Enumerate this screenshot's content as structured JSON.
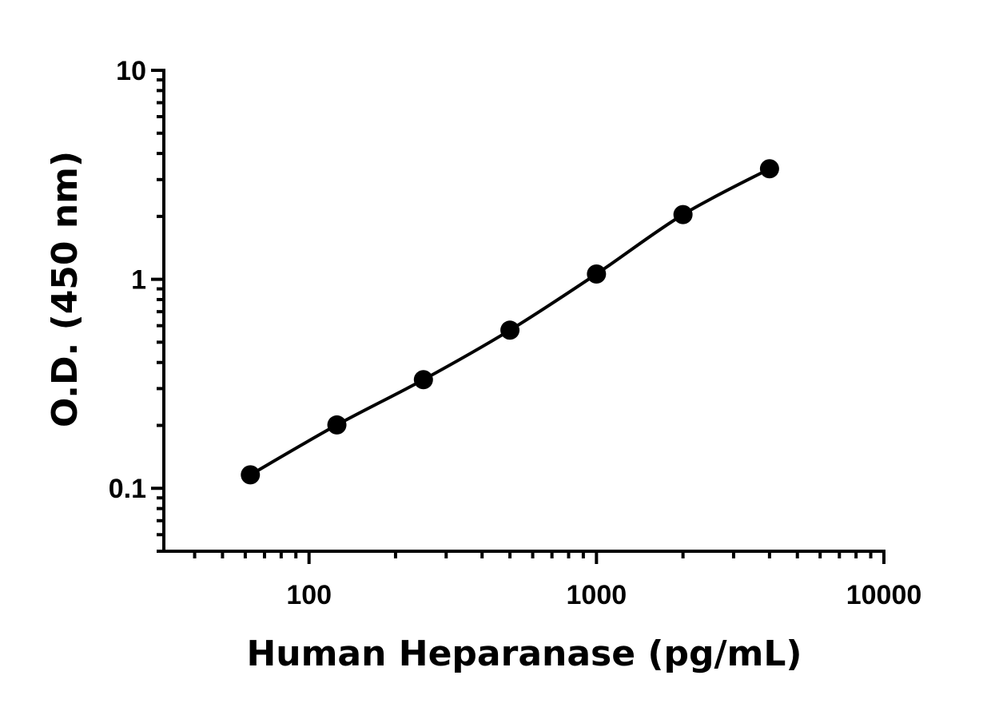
{
  "chart_data": {
    "type": "scatter",
    "xlabel": "Human Heparanase (pg/mL)",
    "ylabel": "O.D. (450 nm)",
    "x_scale": "log",
    "y_scale": "log",
    "xlim": [
      31.25,
      10000
    ],
    "ylim": [
      0.05,
      10
    ],
    "x_tick_labels": [
      "100",
      "1000",
      "10000"
    ],
    "y_tick_labels": [
      "0.1",
      "1",
      "10"
    ],
    "grid": false,
    "legend": "none",
    "fit_line": true,
    "series": [
      {
        "x": [
          62.5,
          125,
          250,
          500,
          1000,
          2000,
          4000
        ],
        "y": [
          0.116,
          0.201,
          0.331,
          0.571,
          1.06,
          2.04,
          3.38
        ]
      }
    ]
  }
}
